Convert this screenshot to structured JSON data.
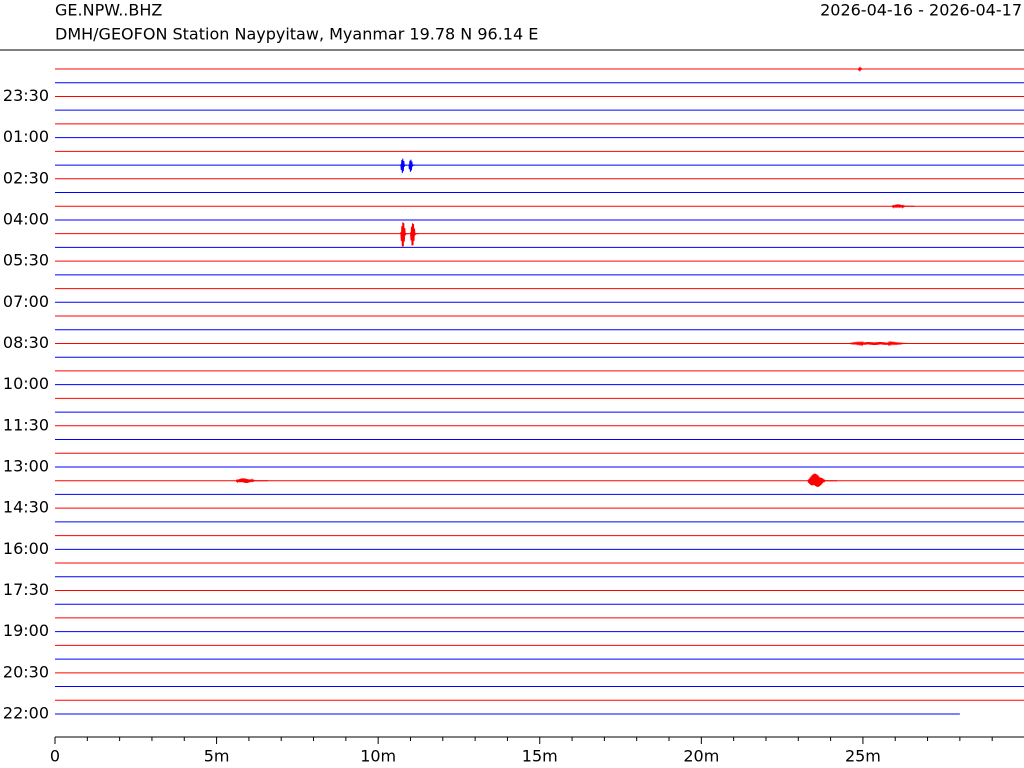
{
  "chart_data": {
    "type": "helicorder",
    "title": "GE.NPW..BHZ",
    "subtitle": "DMH/GEOFON Station Naypyitaw, Myanmar  19.78 N 96.14 E",
    "date_range": "2026-04-16 - 2026-04-17",
    "row_labels": [
      null,
      null,
      "23:30",
      null,
      null,
      "01:00",
      null,
      null,
      "02:30",
      null,
      null,
      "04:00",
      null,
      null,
      "05:30",
      null,
      null,
      "07:00",
      null,
      null,
      "08:30",
      null,
      null,
      "10:00",
      null,
      null,
      "11:30",
      null,
      null,
      "13:00",
      null,
      null,
      "14:30",
      null,
      null,
      "16:00",
      null,
      null,
      "17:30",
      null,
      null,
      "19:00",
      null,
      null,
      "20:30",
      null,
      null,
      "22:00"
    ],
    "colors": [
      "#ff0000",
      "#0000ff"
    ],
    "last_trace_end": 28,
    "events": [
      {
        "row": 0,
        "start": 24.85,
        "end": 25.05,
        "amplitude": 0.1
      },
      {
        "row": 7,
        "start": 10.7,
        "end": 10.9,
        "amplitude": 0.7
      },
      {
        "row": 7,
        "start": 10.95,
        "end": 11.15,
        "amplitude": 0.6
      },
      {
        "row": 10,
        "start": 25.9,
        "end": 26.6,
        "amplitude": 0.15
      },
      {
        "row": 12,
        "start": 10.7,
        "end": 10.95,
        "amplitude": 1.2
      },
      {
        "row": 12,
        "start": 11.0,
        "end": 11.25,
        "amplitude": 1.1
      },
      {
        "row": 20,
        "start": 24.6,
        "end": 27.6,
        "amplitude": 0.12
      },
      {
        "row": 30,
        "start": 5.6,
        "end": 6.6,
        "amplitude": 0.2
      },
      {
        "row": 30,
        "start": 23.3,
        "end": 24.2,
        "amplitude": 0.6
      }
    ],
    "xlim": [
      0,
      30
    ],
    "xticks": [
      0,
      {
        "value": 5,
        "label": "5m"
      },
      {
        "value": 10,
        "label": "10m"
      },
      {
        "value": 15,
        "label": "15m"
      },
      {
        "value": 20,
        "label": "20m"
      },
      {
        "value": 25,
        "label": "25m"
      }
    ],
    "xminorticks": [
      1,
      2,
      3,
      4,
      6,
      7,
      8,
      9,
      11,
      12,
      13,
      14,
      16,
      17,
      18,
      19,
      21,
      22,
      23,
      24,
      26,
      27,
      28,
      29
    ]
  }
}
